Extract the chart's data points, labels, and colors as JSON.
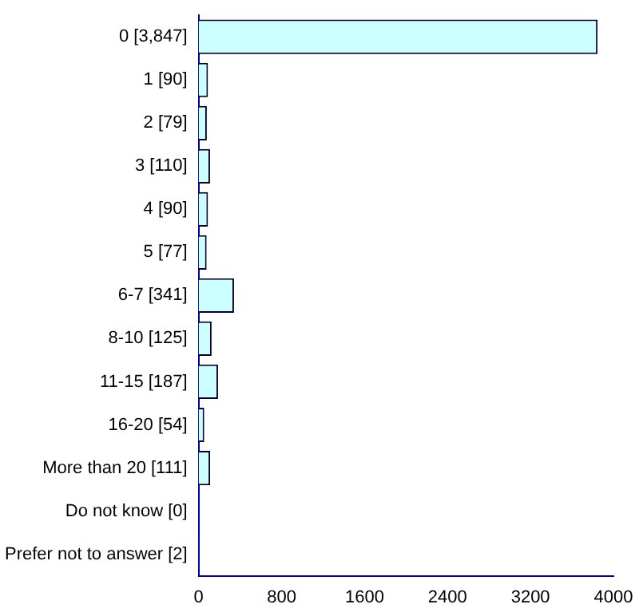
{
  "chart_data": {
    "type": "bar",
    "orientation": "horizontal",
    "categories": [
      "0 [3,847]",
      "1 [90]",
      "2 [79]",
      "3 [110]",
      "4 [90]",
      "5 [77]",
      "6-7 [341]",
      "8-10 [125]",
      "11-15 [187]",
      "16-20 [54]",
      "More than 20 [111]",
      "Do not know [0]",
      "Prefer not to answer [2]"
    ],
    "values": [
      3847,
      90,
      79,
      110,
      90,
      77,
      341,
      125,
      187,
      54,
      111,
      0,
      2
    ],
    "color": "#ccffff",
    "xlim": [
      0,
      4000
    ],
    "xticks": [
      0,
      800,
      1600,
      2400,
      3200,
      4000
    ],
    "grid": false,
    "legend": false
  }
}
